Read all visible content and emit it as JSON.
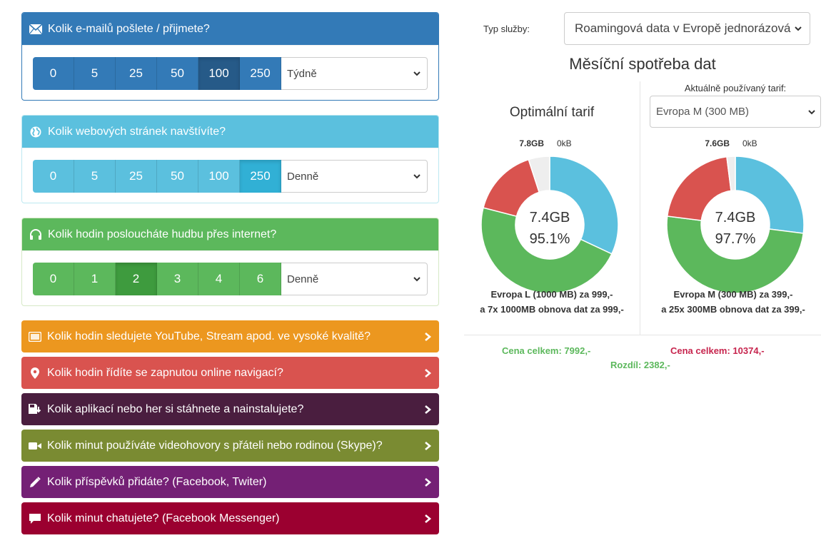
{
  "panels": [
    {
      "title": "Kolik e-mailů pošlete / přijmete?",
      "icon": "envelope-icon",
      "head_color": "#337ab7",
      "border_color": "#337ab7",
      "btn_color": "#337ab7",
      "active_color": "#265a88",
      "options": [
        "0",
        "5",
        "25",
        "50",
        "100",
        "250"
      ],
      "active_index": 4,
      "period": "Týdně"
    },
    {
      "title": "Kolik webových stránek navštívíte?",
      "icon": "globe-icon",
      "head_color": "#5bc0de",
      "border_color": "#bce8f1",
      "btn_color": "#5bc0de",
      "active_color": "#31b0d5",
      "options": [
        "0",
        "5",
        "25",
        "50",
        "100",
        "250"
      ],
      "active_index": 5,
      "period": "Denně"
    },
    {
      "title": "Kolik hodin posloucháte hudbu přes internet?",
      "icon": "headphones-icon",
      "head_color": "#5cb85c",
      "border_color": "#d6e9c6",
      "btn_color": "#5cb85c",
      "active_color": "#3e9b3e",
      "options": [
        "0",
        "1",
        "2",
        "3",
        "4",
        "6"
      ],
      "active_index": 2,
      "period": "Denně"
    }
  ],
  "collapsed": [
    {
      "title": "Kolik hodin sledujete YouTube, Stream apod. ve vysoké kvalitě?",
      "icon": "hd-video-icon",
      "color": "#ec971f"
    },
    {
      "title": "Kolik hodin řídíte se zapnutou online navigací?",
      "icon": "map-marker-icon",
      "color": "#d9534f"
    },
    {
      "title": "Kolik aplikací nebo her si stáhnete a nainstalujete?",
      "icon": "floppy-download-icon",
      "color": "#4a1e3f"
    },
    {
      "title": "Kolik minut používáte videohovory s přáteli nebo rodinou (Skype)?",
      "icon": "video-camera-icon",
      "color": "#7a8b32"
    },
    {
      "title": "Kolik příspěvků přidáte? (Facebook, Twiter)",
      "icon": "pencil-icon",
      "color": "#742075"
    },
    {
      "title": "Kolik minut chatujete? (Facebook Messenger)",
      "icon": "chat-bubble-icon",
      "color": "#9b0030"
    }
  ],
  "service": {
    "label": "Typ služby:",
    "value": "Roamingová data v Evropě jednorázová"
  },
  "main_title": "Měsíční spotřeba dat",
  "optimal": {
    "title": "Optimální tarif",
    "center_value": "7.4GB",
    "center_percent": "95.1%",
    "label_left": "7.8GB",
    "label_right": "0kB",
    "slices": [
      {
        "name": "blue",
        "value": 32,
        "color": "#5bc0de"
      },
      {
        "name": "green",
        "value": 47,
        "color": "#5cb85c"
      },
      {
        "name": "red",
        "value": 16,
        "color": "#d9534f"
      },
      {
        "name": "rest",
        "value": 5,
        "color": "#eeeeee"
      }
    ],
    "desc_line1": "Evropa L (1000 MB) za 999,-",
    "desc_line2": "a 7x 1000MB obnova dat za 999,-",
    "price": "Cena celkem: 7992,-",
    "price_color": "#5cb85c"
  },
  "current": {
    "label": "Aktuálně používaný tarif:",
    "select_value": "Evropa M (300 MB)",
    "center_value": "7.4GB",
    "center_percent": "97.7%",
    "label_left": "7.6GB",
    "label_right": "0kB",
    "slices": [
      {
        "name": "blue",
        "value": 27,
        "color": "#5bc0de"
      },
      {
        "name": "green",
        "value": 50,
        "color": "#5cb85c"
      },
      {
        "name": "red",
        "value": 21,
        "color": "#d9534f"
      },
      {
        "name": "rest",
        "value": 2,
        "color": "#eeeeee"
      }
    ],
    "desc_line1": "Evropa M (300 MB) za 399,-",
    "desc_line2": "a 25x 300MB obnova dat za 399,-",
    "price": "Cena celkem: 10374,-",
    "price_color": "#c7254e"
  },
  "difference": "Rozdíl: 2382,-",
  "difference_color": "#5cb85c"
}
